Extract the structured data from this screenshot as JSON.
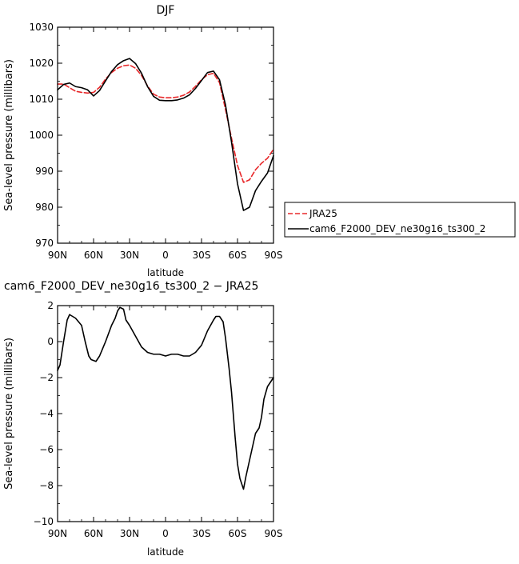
{
  "chart_data": [
    {
      "type": "line",
      "title": "DJF",
      "xlabel": "latitude",
      "ylabel": "Sea-level pressure (millibars)",
      "xlim": [
        90,
        -90
      ],
      "ylim": [
        970,
        1030
      ],
      "x_ticks": [
        90,
        60,
        30,
        0,
        -30,
        -60,
        -90
      ],
      "x_tick_labels": [
        "90N",
        "60N",
        "30N",
        "0",
        "30S",
        "60S",
        "90S"
      ],
      "y_ticks": [
        970,
        980,
        990,
        1000,
        1010,
        1020,
        1030
      ],
      "y_tick_labels": [
        "970",
        "980",
        "990",
        "1000",
        "1010",
        "1020",
        "1030"
      ],
      "legend_position": "right",
      "series": [
        {
          "name": "JRA25",
          "color": "#e8282a",
          "dash": "dashed",
          "points": [
            [
              90,
              1014.2
            ],
            [
              85,
              1014.2
            ],
            [
              80,
              1013.2
            ],
            [
              75,
              1012.2
            ],
            [
              70,
              1011.9
            ],
            [
              65,
              1011.7
            ],
            [
              60,
              1011.9
            ],
            [
              55,
              1013.3
            ],
            [
              50,
              1015.6
            ],
            [
              45,
              1017.4
            ],
            [
              40,
              1018.6
            ],
            [
              35,
              1019.3
            ],
            [
              30,
              1019.5
            ],
            [
              25,
              1018.6
            ],
            [
              20,
              1016.6
            ],
            [
              15,
              1013.7
            ],
            [
              10,
              1011.4
            ],
            [
              5,
              1010.6
            ],
            [
              0,
              1010.4
            ],
            [
              -5,
              1010.4
            ],
            [
              -10,
              1010.6
            ],
            [
              -15,
              1011.1
            ],
            [
              -20,
              1012.0
            ],
            [
              -25,
              1013.6
            ],
            [
              -30,
              1015.4
            ],
            [
              -35,
              1016.8
            ],
            [
              -40,
              1017.2
            ],
            [
              -45,
              1014.6
            ],
            [
              -50,
              1007.1
            ],
            [
              -55,
              999.2
            ],
            [
              -60,
              991.6
            ],
            [
              -65,
              986.9
            ],
            [
              -70,
              987.6
            ],
            [
              -75,
              990.4
            ],
            [
              -80,
              992.2
            ],
            [
              -85,
              993.6
            ],
            [
              -90,
              996.1
            ]
          ]
        },
        {
          "name": "cam6_F2000_DEV_ne30g16_ts300_2",
          "color": "#000000",
          "dash": "solid",
          "points": [
            [
              90,
              1012.6
            ],
            [
              85,
              1014.1
            ],
            [
              80,
              1014.5
            ],
            [
              75,
              1013.5
            ],
            [
              70,
              1013.2
            ],
            [
              65,
              1012.6
            ],
            [
              60,
              1010.9
            ],
            [
              55,
              1012.4
            ],
            [
              50,
              1015.1
            ],
            [
              45,
              1017.7
            ],
            [
              40,
              1019.6
            ],
            [
              35,
              1020.7
            ],
            [
              30,
              1021.3
            ],
            [
              25,
              1019.9
            ],
            [
              20,
              1017.2
            ],
            [
              15,
              1013.5
            ],
            [
              10,
              1010.8
            ],
            [
              5,
              1009.7
            ],
            [
              0,
              1009.6
            ],
            [
              -5,
              1009.6
            ],
            [
              -10,
              1009.8
            ],
            [
              -15,
              1010.3
            ],
            [
              -20,
              1011.2
            ],
            [
              -25,
              1013.0
            ],
            [
              -30,
              1015.2
            ],
            [
              -35,
              1017.4
            ],
            [
              -40,
              1017.8
            ],
            [
              -45,
              1015.4
            ],
            [
              -50,
              1008.4
            ],
            [
              -55,
              998.1
            ],
            [
              -60,
              986.5
            ],
            [
              -65,
              979.1
            ],
            [
              -70,
              980.0
            ],
            [
              -75,
              984.6
            ],
            [
              -80,
              987.2
            ],
            [
              -85,
              989.5
            ],
            [
              -90,
              994.3
            ]
          ]
        }
      ]
    },
    {
      "type": "line",
      "title": "cam6_F2000_DEV_ne30g16_ts300_2 − JRA25",
      "xlabel": "latitude",
      "ylabel": "Sea-level pressure (millibars)",
      "xlim": [
        90,
        -90
      ],
      "ylim": [
        -10,
        2
      ],
      "x_ticks": [
        90,
        60,
        30,
        0,
        -30,
        -60,
        -90
      ],
      "x_tick_labels": [
        "90N",
        "60N",
        "30N",
        "0",
        "30S",
        "60S",
        "90S"
      ],
      "y_ticks": [
        -10,
        -8,
        -6,
        -4,
        -2,
        0,
        2
      ],
      "y_tick_labels": [
        "−10",
        "−8",
        "−6",
        "−4",
        "−2",
        "0",
        "2"
      ],
      "series": [
        {
          "color": "#000000",
          "dash": "solid",
          "points": [
            [
              90,
              -1.6
            ],
            [
              88,
              -1.3
            ],
            [
              85,
              0.0
            ],
            [
              82,
              1.2
            ],
            [
              80,
              1.5
            ],
            [
              75,
              1.3
            ],
            [
              70,
              0.9
            ],
            [
              67,
              0.0
            ],
            [
              64,
              -0.8
            ],
            [
              62,
              -1.0
            ],
            [
              58,
              -1.1
            ],
            [
              55,
              -0.8
            ],
            [
              50,
              0.0
            ],
            [
              45,
              0.9
            ],
            [
              42,
              1.3
            ],
            [
              40,
              1.7
            ],
            [
              38,
              1.9
            ],
            [
              35,
              1.8
            ],
            [
              33,
              1.2
            ],
            [
              30,
              0.9
            ],
            [
              25,
              0.3
            ],
            [
              20,
              -0.3
            ],
            [
              15,
              -0.6
            ],
            [
              10,
              -0.7
            ],
            [
              5,
              -0.7
            ],
            [
              0,
              -0.8
            ],
            [
              -5,
              -0.7
            ],
            [
              -10,
              -0.7
            ],
            [
              -15,
              -0.8
            ],
            [
              -20,
              -0.8
            ],
            [
              -25,
              -0.6
            ],
            [
              -30,
              -0.2
            ],
            [
              -35,
              0.6
            ],
            [
              -40,
              1.2
            ],
            [
              -42,
              1.4
            ],
            [
              -45,
              1.4
            ],
            [
              -48,
              1.1
            ],
            [
              -50,
              0.2
            ],
            [
              -53,
              -1.5
            ],
            [
              -55,
              -2.8
            ],
            [
              -58,
              -5.3
            ],
            [
              -60,
              -6.8
            ],
            [
              -62,
              -7.6
            ],
            [
              -65,
              -8.2
            ],
            [
              -67,
              -7.5
            ],
            [
              -70,
              -6.6
            ],
            [
              -75,
              -5.1
            ],
            [
              -78,
              -4.8
            ],
            [
              -80,
              -4.2
            ],
            [
              -82,
              -3.2
            ],
            [
              -85,
              -2.5
            ],
            [
              -88,
              -2.2
            ],
            [
              -90,
              -2.0
            ]
          ]
        }
      ]
    }
  ]
}
